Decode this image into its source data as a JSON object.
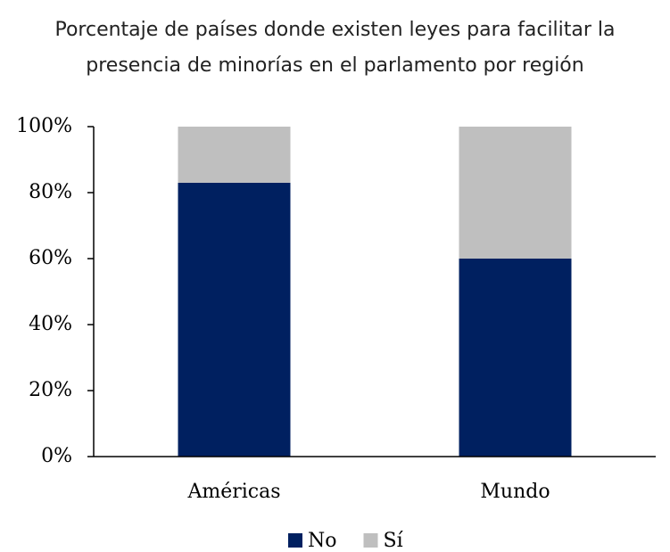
{
  "chart_data": {
    "type": "stacked_bar",
    "title": "Porcentaje de países donde existen leyes para facilitar la\npresencia de minorías en el parlamento por región",
    "categories": [
      "Américas",
      "Mundo"
    ],
    "series": [
      {
        "name": "No",
        "color": "#002060",
        "values": [
          83,
          60
        ]
      },
      {
        "name": "Sí",
        "color": "#bfbfbf",
        "values": [
          17,
          40
        ]
      }
    ],
    "ylim": [
      0,
      100
    ],
    "yticks": [
      {
        "value": 0,
        "label": "0%"
      },
      {
        "value": 20,
        "label": "20%"
      },
      {
        "value": 40,
        "label": "40%"
      },
      {
        "value": 60,
        "label": "60%"
      },
      {
        "value": 80,
        "label": "80%"
      },
      {
        "value": 100,
        "label": "100%"
      }
    ],
    "legend": "bottom"
  }
}
